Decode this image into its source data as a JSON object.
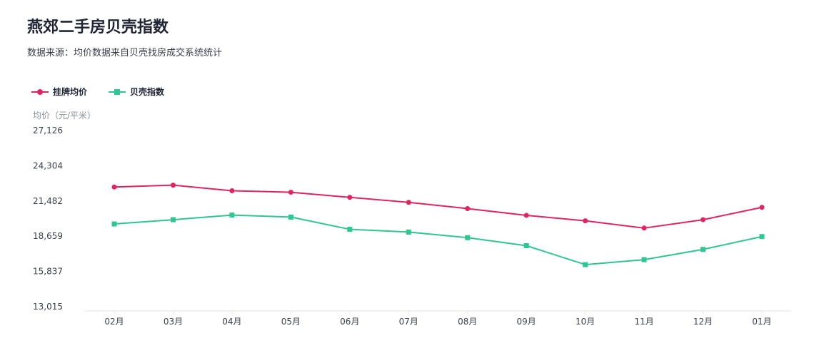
{
  "page": {
    "title": "燕郊二手房贝壳指数",
    "subtitle": "数据来源：均价数据来自贝壳找房成交系统统计"
  },
  "chart_data": {
    "type": "line",
    "categories": [
      "02月",
      "03月",
      "04月",
      "05月",
      "06月",
      "07月",
      "08月",
      "09月",
      "10月",
      "11月",
      "12月",
      "01月"
    ],
    "ylabel": "均价（元/平米）",
    "ylim": [
      13015,
      27126
    ],
    "yticks": [
      "27,126",
      "24,304",
      "21,482",
      "18,659",
      "15,837",
      "13,015"
    ],
    "ytick_values": [
      27126,
      24304,
      21482,
      18659,
      15837,
      13015
    ],
    "series": [
      {
        "name": "挂牌均价",
        "color": "#e0245e",
        "marker": "circle",
        "values": [
          22600,
          22750,
          22300,
          22180,
          21770,
          21370,
          20870,
          20330,
          19890,
          19310,
          19980,
          20970
        ]
      },
      {
        "name": "贝壳指数",
        "color": "#2ec78f",
        "marker": "square",
        "values": [
          19640,
          19980,
          20350,
          20190,
          19210,
          18990,
          18540,
          17900,
          16380,
          16780,
          17600,
          18630
        ]
      }
    ],
    "legend": "top-left",
    "grid": false
  }
}
